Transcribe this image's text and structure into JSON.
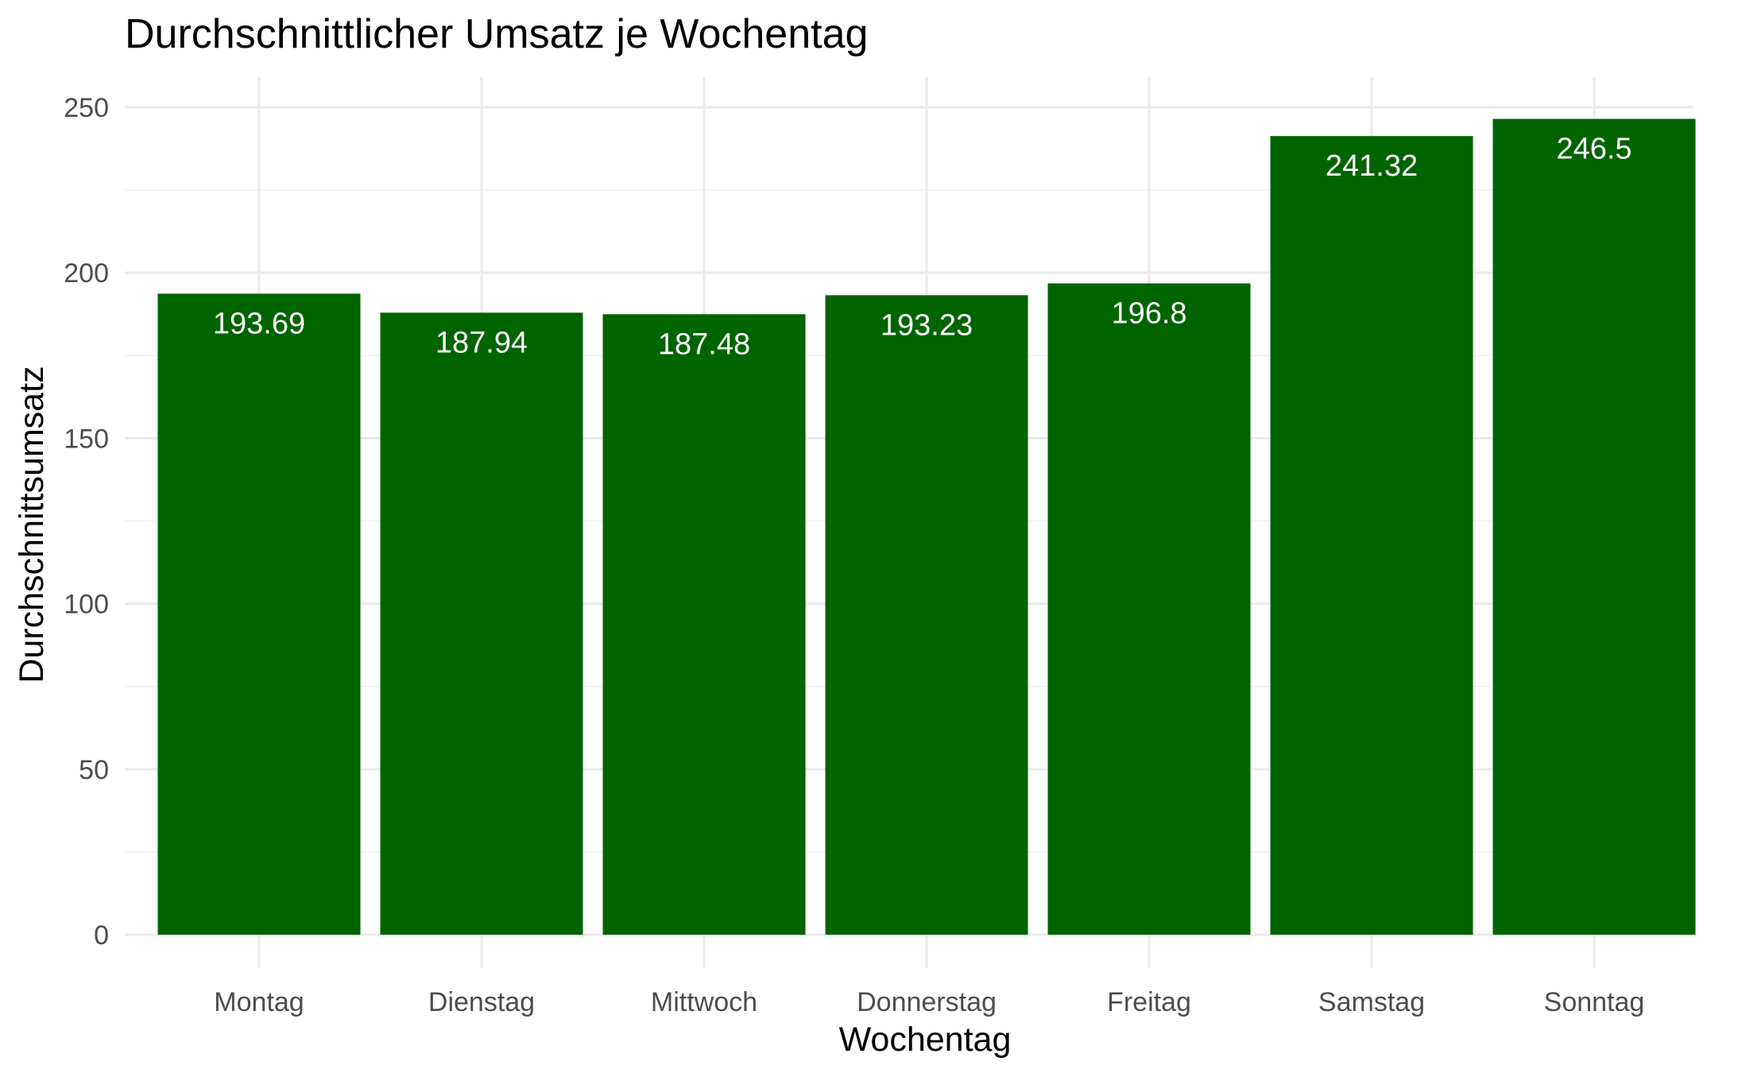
{
  "chart_data": {
    "type": "bar",
    "title": "Durchschnittlicher Umsatz je Wochentag",
    "xlabel": "Wochentag",
    "ylabel": "Durchschnittsumsatz",
    "categories": [
      "Montag",
      "Dienstag",
      "Mittwoch",
      "Donnerstag",
      "Freitag",
      "Samstag",
      "Sonntag"
    ],
    "values": [
      193.69,
      187.94,
      187.48,
      193.23,
      196.8,
      241.32,
      246.5
    ],
    "value_labels": [
      "193.69",
      "187.94",
      "187.48",
      "193.23",
      "196.8",
      "241.32",
      "246.5"
    ],
    "ylim": [
      0,
      250
    ],
    "yticks": [
      0,
      50,
      100,
      150,
      200,
      250
    ],
    "ytick_labels": [
      "0",
      "50",
      "100",
      "150",
      "200",
      "250"
    ],
    "yminor": [
      25,
      75,
      125,
      175,
      225
    ],
    "grid": true,
    "legend": "none",
    "bar_color": "#006400",
    "label_color": "#ffffff"
  }
}
